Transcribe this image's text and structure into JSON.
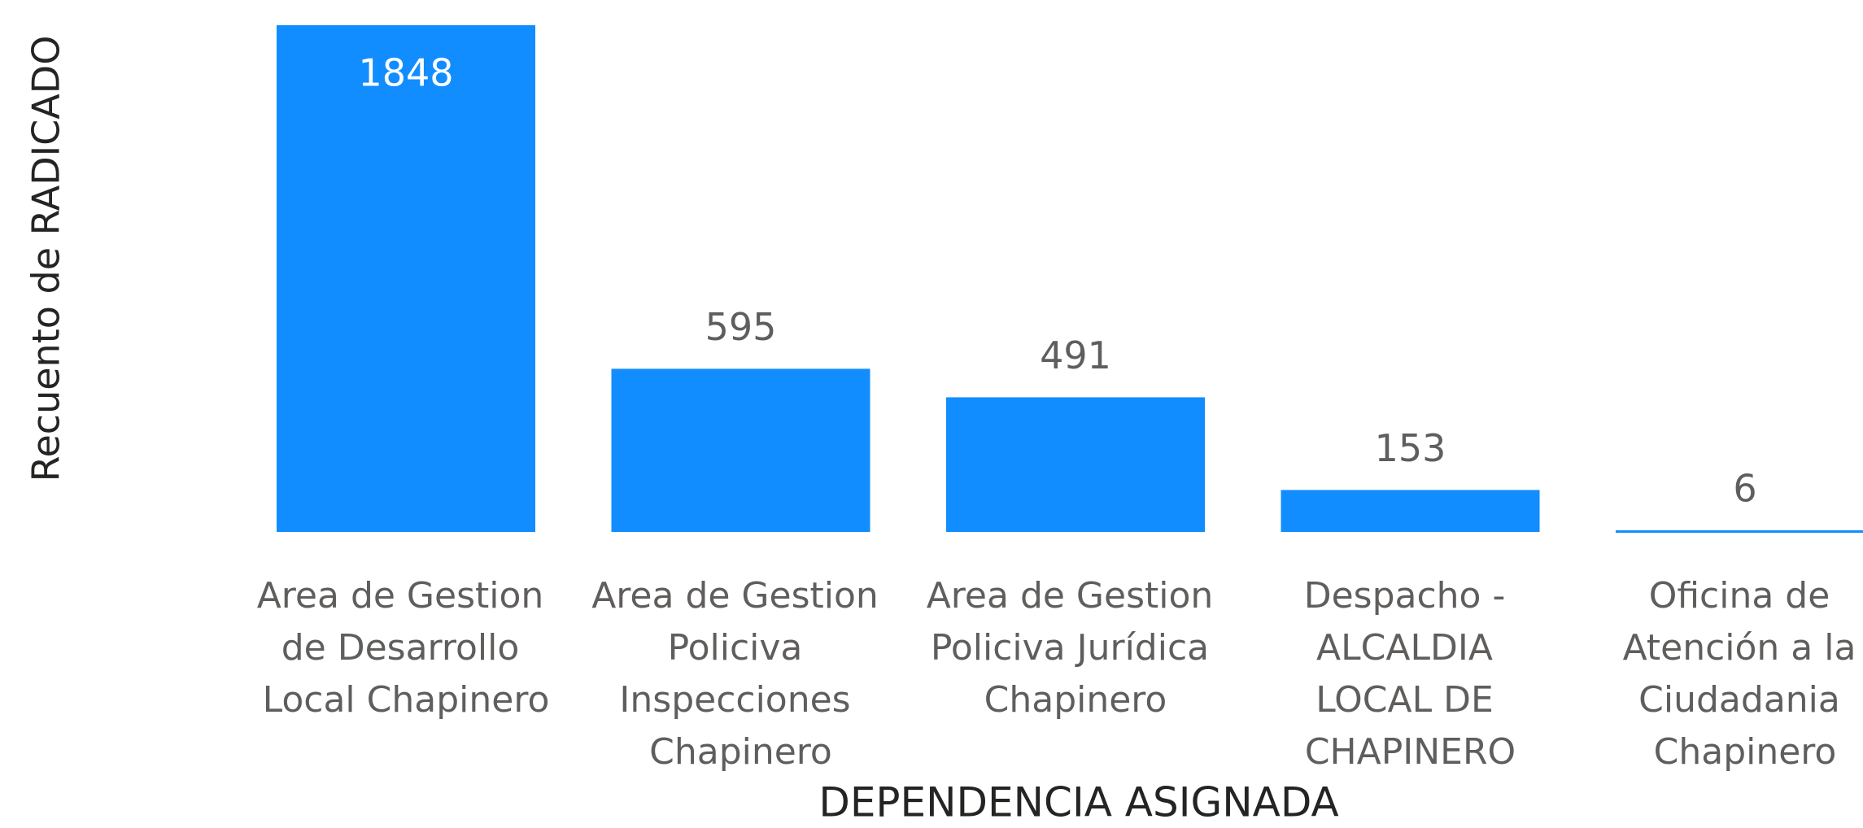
{
  "chart_data": {
    "type": "bar",
    "x_label": "DEPENDENCIA ASIGNADA",
    "y_label": "Recuento de RADICADO",
    "categories": [
      "Area de Gestion de Desarrollo Local Chapinero",
      "Area de Gestion Policiva Inspecciones Chapinero",
      "Area de Gestion Policiva Jurídica Chapinero",
      "Despacho - ALCALDIA LOCAL DE CHAPINERO",
      "Oficina de Atención a la Ciudadania Chapinero"
    ],
    "values": [
      1848,
      595,
      491,
      153,
      6
    ],
    "color": "#118dff"
  }
}
